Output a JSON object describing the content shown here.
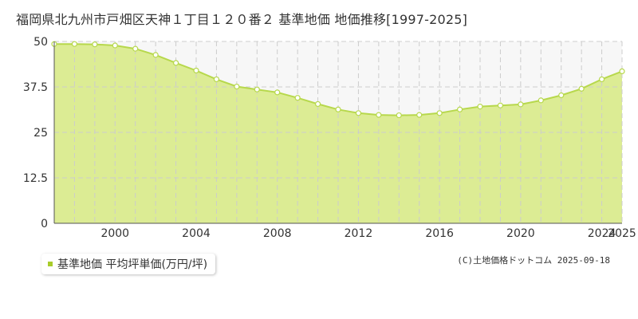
{
  "page": {
    "title": "福岡県北九州市戸畑区天神１丁目１２０番２ 基準地価 地価推移[1997-2025]",
    "copyright": "(C)土地価格ドットコム 2025-09-18"
  },
  "legend": {
    "label": "基準地価 平均坪単価(万円/坪)",
    "marker_color": "#a8cc2a"
  },
  "colors": {
    "fill": "#dcec94",
    "line": "#b7d84c",
    "point_fill": "#ffffff",
    "grid": "#cccccc",
    "axis": "#555555",
    "plot_bg_upper": "#f7f7f7"
  },
  "chart_data": {
    "type": "area",
    "title": "福岡県北九州市戸畑区天神１丁目１２０番２ 基準地価 地価推移[1997-2025]",
    "xlabel": "",
    "ylabel": "",
    "xlim": [
      1997,
      2025
    ],
    "ylim": [
      0,
      50
    ],
    "x_ticks": [
      2000,
      2004,
      2008,
      2012,
      2016,
      2020,
      2024,
      2025
    ],
    "y_ticks": [
      0,
      12.5,
      25,
      37.5,
      50
    ],
    "y_tick_labels": [
      "0",
      "12.5",
      "25",
      "37.5",
      "50"
    ],
    "grid": true,
    "legend_position": "bottom-left",
    "series": [
      {
        "name": "基準地価 平均坪単価(万円/坪)",
        "x": [
          1997,
          1998,
          1999,
          2000,
          2001,
          2002,
          2003,
          2004,
          2005,
          2006,
          2007,
          2008,
          2009,
          2010,
          2011,
          2012,
          2013,
          2014,
          2015,
          2016,
          2017,
          2018,
          2019,
          2020,
          2021,
          2022,
          2023,
          2024,
          2025
        ],
        "values": [
          49.3,
          49.3,
          49.2,
          48.9,
          48.0,
          46.3,
          44.1,
          42.0,
          39.6,
          37.6,
          36.8,
          36.0,
          34.5,
          32.8,
          31.3,
          30.3,
          29.8,
          29.7,
          29.8,
          30.3,
          31.3,
          32.1,
          32.4,
          32.7,
          33.8,
          35.2,
          37.0,
          39.6,
          41.8
        ]
      }
    ]
  }
}
